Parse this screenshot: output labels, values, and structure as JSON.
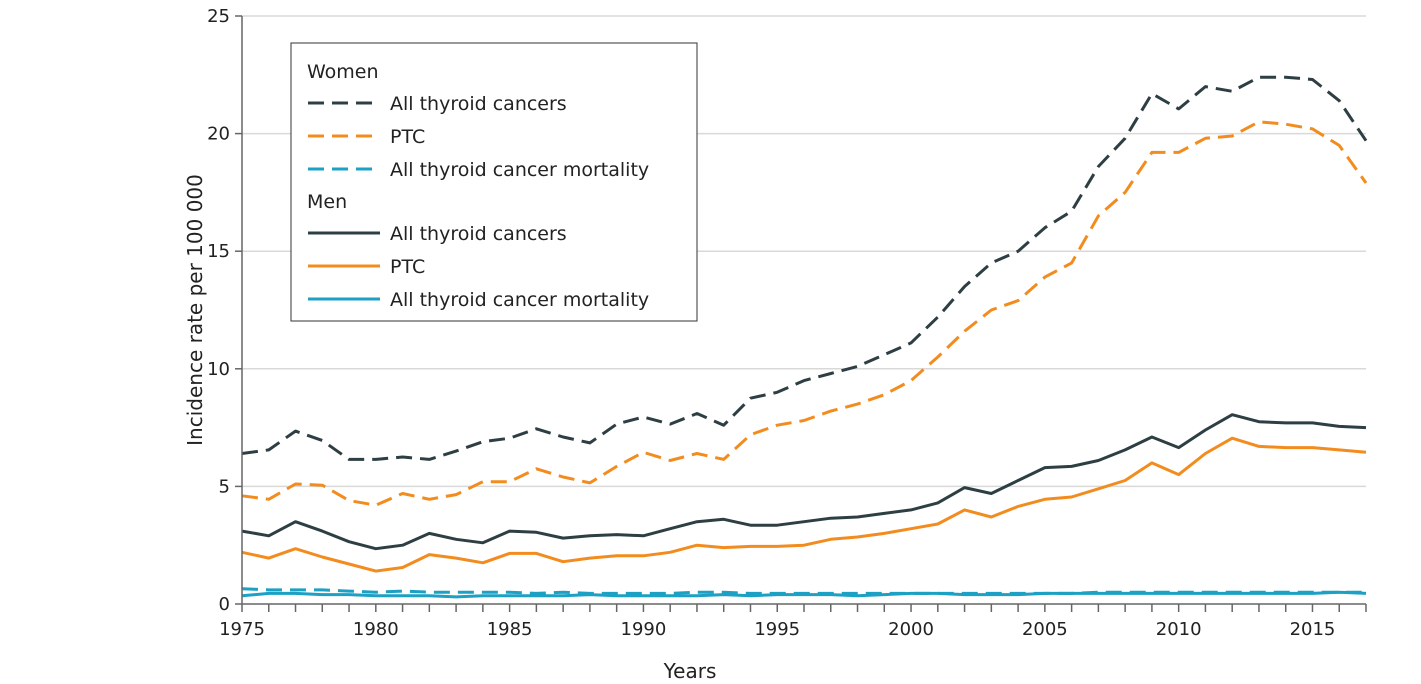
{
  "chart_data": {
    "type": "line",
    "title": "",
    "xlabel": "Years",
    "ylabel": "Incidence rate per 100 000",
    "xlim": [
      1975,
      2017
    ],
    "ylim": [
      0,
      25
    ],
    "xticks": [
      1975,
      1980,
      1985,
      1990,
      1995,
      2000,
      2005,
      2010,
      2015
    ],
    "yticks": [
      0,
      5,
      10,
      15,
      20,
      25
    ],
    "grid": "horizontal",
    "legend_placement": "top-left",
    "colors": {
      "all": "#2e3f44",
      "ptc": "#f28c1e",
      "mortality": "#1ca0c4"
    },
    "legend_groups": [
      {
        "title": "Women",
        "style": "dashed",
        "entries": [
          "All thyroid cancers",
          "PTC",
          "All thyroid cancer mortality"
        ]
      },
      {
        "title": "Men",
        "style": "solid",
        "entries": [
          "All thyroid cancers",
          "PTC",
          "All thyroid cancer mortality"
        ]
      }
    ],
    "x": [
      1975,
      1976,
      1977,
      1978,
      1979,
      1980,
      1981,
      1982,
      1983,
      1984,
      1985,
      1986,
      1987,
      1988,
      1989,
      1990,
      1991,
      1992,
      1993,
      1994,
      1995,
      1996,
      1997,
      1998,
      1999,
      2000,
      2001,
      2002,
      2003,
      2004,
      2005,
      2006,
      2007,
      2008,
      2009,
      2010,
      2011,
      2012,
      2013,
      2014,
      2015,
      2016,
      2017
    ],
    "series": [
      {
        "group": "Women",
        "name": "All thyroid cancers",
        "style": "dashed",
        "color": "#2e3f44",
        "values": [
          6.4,
          6.55,
          7.35,
          6.95,
          6.15,
          6.15,
          6.25,
          6.15,
          6.5,
          6.9,
          7.05,
          7.45,
          7.1,
          6.85,
          7.65,
          7.95,
          7.65,
          8.1,
          7.6,
          8.75,
          9.0,
          9.5,
          9.8,
          10.1,
          10.6,
          11.1,
          12.2,
          13.5,
          14.5,
          15.0,
          16.0,
          16.7,
          18.6,
          19.8,
          21.7,
          21.05,
          22.0,
          21.8,
          22.4,
          22.4,
          22.3,
          21.4,
          19.7
        ]
      },
      {
        "group": "Women",
        "name": "PTC",
        "style": "dashed",
        "color": "#f28c1e",
        "values": [
          4.6,
          4.45,
          5.1,
          5.05,
          4.4,
          4.2,
          4.7,
          4.45,
          4.65,
          5.2,
          5.2,
          5.75,
          5.4,
          5.15,
          5.85,
          6.45,
          6.1,
          6.4,
          6.15,
          7.2,
          7.6,
          7.8,
          8.2,
          8.5,
          8.9,
          9.5,
          10.5,
          11.6,
          12.5,
          12.9,
          13.9,
          14.5,
          16.5,
          17.5,
          19.2,
          19.2,
          19.8,
          19.9,
          20.5,
          20.4,
          20.2,
          19.5,
          17.9
        ]
      },
      {
        "group": "Women",
        "name": "All thyroid cancer mortality",
        "style": "dashed",
        "color": "#1ca0c4",
        "values": [
          0.65,
          0.6,
          0.6,
          0.6,
          0.55,
          0.5,
          0.55,
          0.5,
          0.5,
          0.5,
          0.5,
          0.45,
          0.5,
          0.45,
          0.45,
          0.45,
          0.45,
          0.5,
          0.5,
          0.45,
          0.45,
          0.45,
          0.45,
          0.45,
          0.45,
          0.45,
          0.45,
          0.45,
          0.45,
          0.45,
          0.45,
          0.45,
          0.5,
          0.5,
          0.5,
          0.5,
          0.5,
          0.5,
          0.5,
          0.5,
          0.5,
          0.5,
          0.5
        ]
      },
      {
        "group": "Men",
        "name": "All thyroid cancers",
        "style": "solid",
        "color": "#2e3f44",
        "values": [
          3.1,
          2.9,
          3.5,
          3.1,
          2.65,
          2.35,
          2.5,
          3.0,
          2.75,
          2.6,
          3.1,
          3.05,
          2.8,
          2.9,
          2.95,
          2.9,
          3.2,
          3.5,
          3.6,
          3.35,
          3.35,
          3.5,
          3.65,
          3.7,
          3.85,
          4.0,
          4.3,
          4.95,
          4.7,
          5.25,
          5.8,
          5.85,
          6.1,
          6.55,
          7.1,
          6.65,
          7.4,
          8.05,
          7.75,
          7.7,
          7.7,
          7.55,
          7.5
        ]
      },
      {
        "group": "Men",
        "name": "PTC",
        "style": "solid",
        "color": "#f28c1e",
        "values": [
          2.2,
          1.95,
          2.35,
          2.0,
          1.7,
          1.4,
          1.55,
          2.1,
          1.95,
          1.75,
          2.15,
          2.15,
          1.8,
          1.95,
          2.05,
          2.05,
          2.2,
          2.5,
          2.4,
          2.45,
          2.45,
          2.5,
          2.75,
          2.85,
          3.0,
          3.2,
          3.4,
          4.0,
          3.7,
          4.15,
          4.45,
          4.55,
          4.9,
          5.25,
          6.0,
          5.5,
          6.4,
          7.05,
          6.7,
          6.65,
          6.65,
          6.55,
          6.45
        ]
      },
      {
        "group": "Men",
        "name": "All thyroid cancer mortality",
        "style": "solid",
        "color": "#1ca0c4",
        "values": [
          0.35,
          0.45,
          0.45,
          0.4,
          0.4,
          0.35,
          0.35,
          0.35,
          0.3,
          0.35,
          0.35,
          0.35,
          0.35,
          0.4,
          0.35,
          0.35,
          0.35,
          0.35,
          0.4,
          0.35,
          0.4,
          0.4,
          0.4,
          0.35,
          0.4,
          0.45,
          0.45,
          0.4,
          0.4,
          0.4,
          0.45,
          0.45,
          0.45,
          0.45,
          0.45,
          0.45,
          0.45,
          0.45,
          0.45,
          0.45,
          0.45,
          0.5,
          0.45
        ]
      }
    ]
  }
}
